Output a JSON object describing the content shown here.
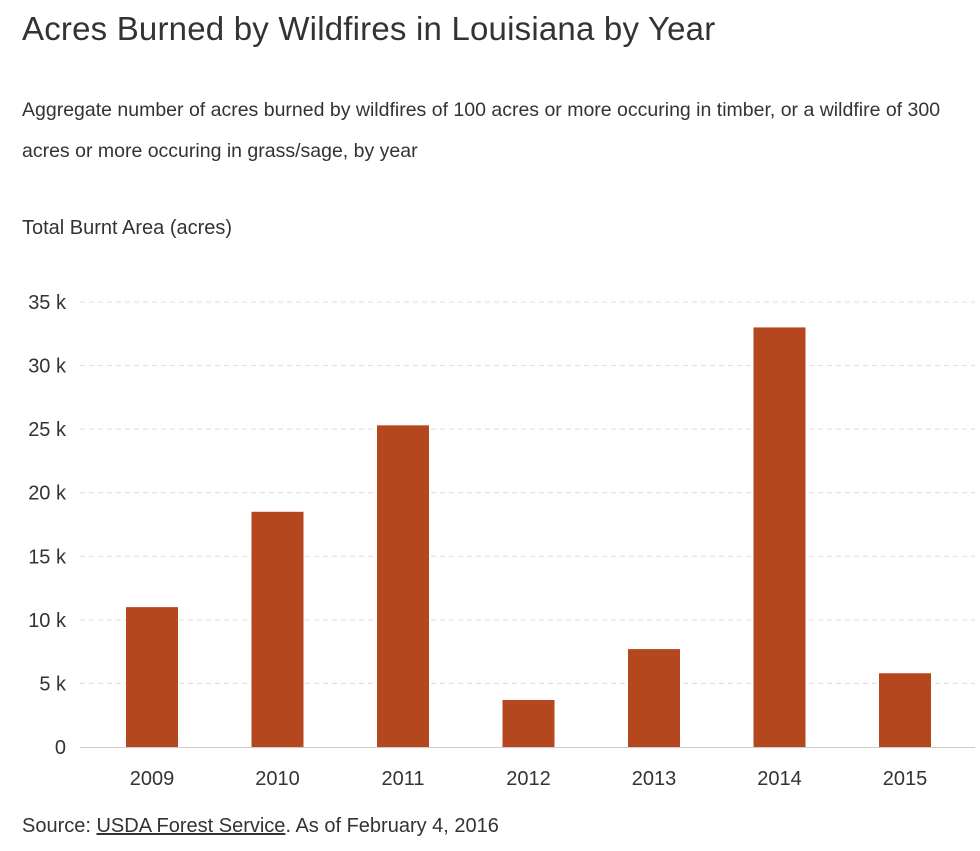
{
  "header": {
    "title": "Acres Burned by Wildfires in Louisiana by Year",
    "subtitle": "Aggregate number of acres burned by wildfires of 100 acres or more occuring in timber, or a wildfire of 300 acres or more occuring in grass/sage, by year"
  },
  "footer": {
    "source_prefix": "Source: ",
    "source_link": "USDA Forest Service",
    "source_suffix": ". As of February 4, 2016"
  },
  "colors": {
    "bar": "#b5471f",
    "grid": "#dddddd",
    "axis": "#cccccc"
  },
  "chart_data": {
    "type": "bar",
    "title": "Acres Burned by Wildfires in Louisiana by Year",
    "xlabel": "",
    "ylabel": "Total Burnt Area (acres)",
    "categories": [
      "2009",
      "2010",
      "2011",
      "2012",
      "2013",
      "2014",
      "2015"
    ],
    "values": [
      11000,
      18500,
      25300,
      3700,
      7700,
      33000,
      5800
    ],
    "ylim": [
      0,
      35000
    ],
    "yticks": [
      0,
      5000,
      10000,
      15000,
      20000,
      25000,
      30000,
      35000
    ],
    "ytick_labels": [
      "0",
      "5 k",
      "10 k",
      "15 k",
      "20 k",
      "25 k",
      "30 k",
      "35 k"
    ],
    "grid": true,
    "legend": "none"
  }
}
